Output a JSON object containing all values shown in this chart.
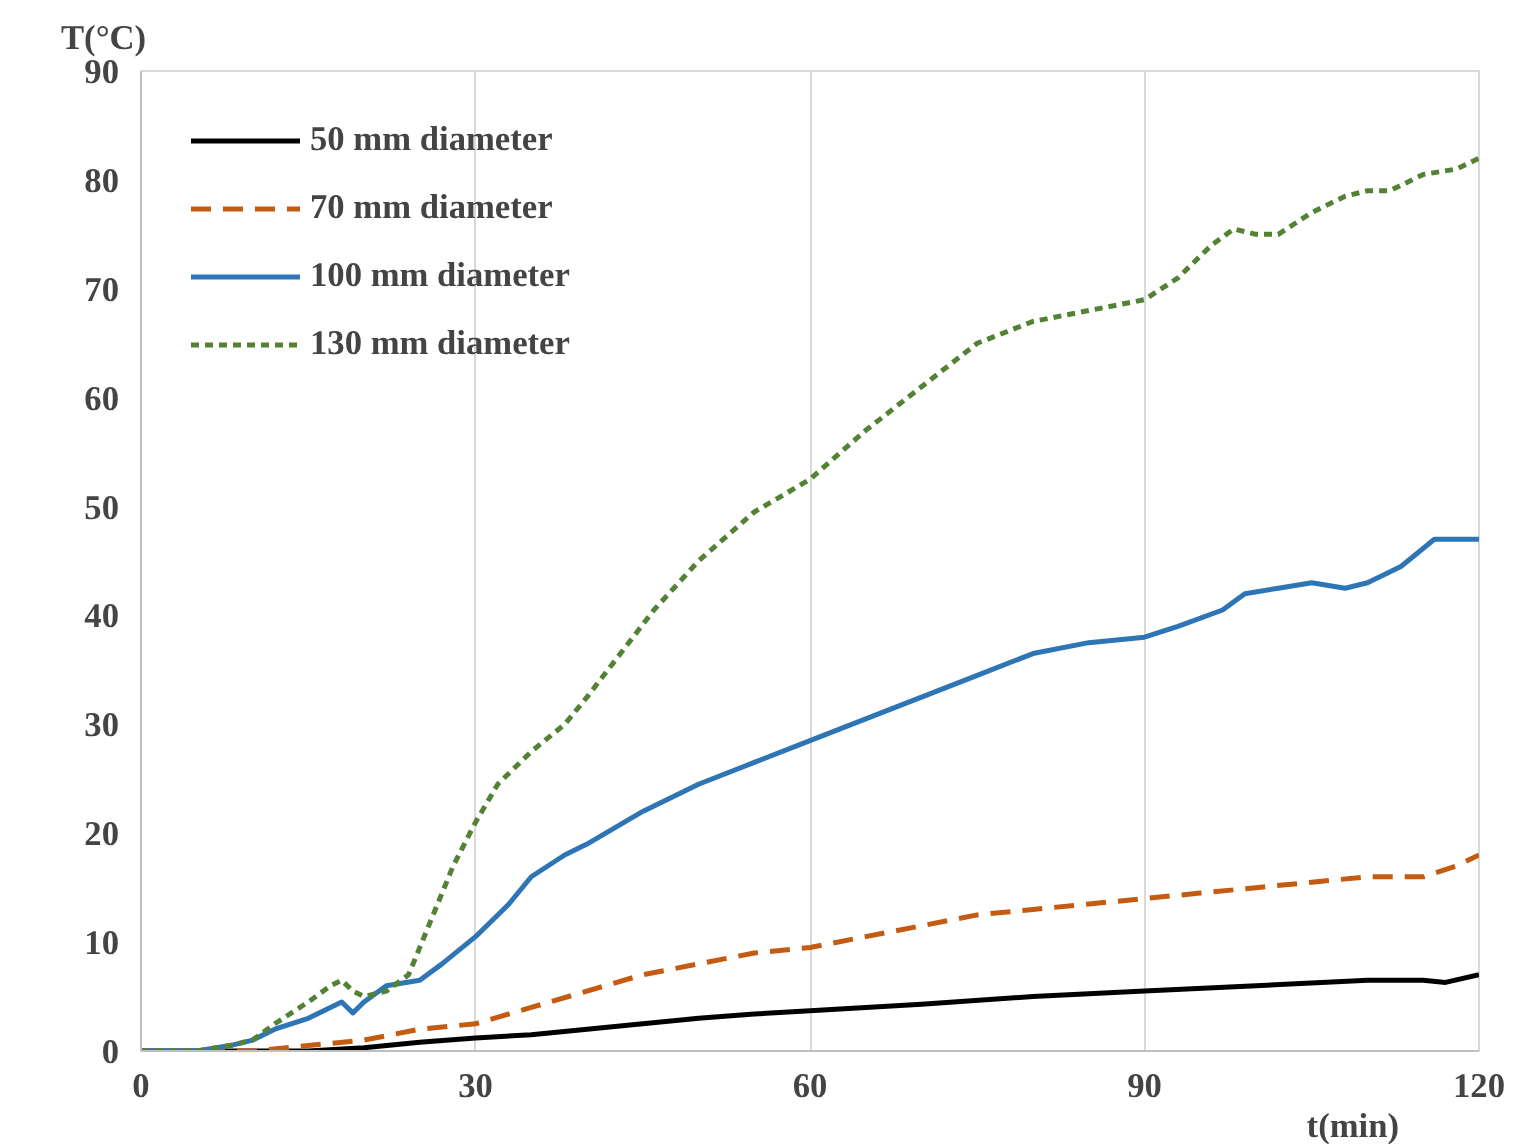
{
  "chart_data": {
    "type": "line",
    "xlabel": "t(min)",
    "ylabel": "T(°C)",
    "xlim": [
      0,
      120
    ],
    "ylim": [
      0,
      90
    ],
    "xticks": [
      0,
      30,
      60,
      90,
      120
    ],
    "yticks": [
      0,
      10,
      20,
      30,
      40,
      50,
      60,
      70,
      80,
      90
    ],
    "grid": "x",
    "legend": "top left",
    "series": [
      {
        "name": "50 mm diameter",
        "color": "#000000",
        "line_style": "solid",
        "x": [
          0,
          15,
          20,
          25,
          30,
          35,
          40,
          45,
          50,
          55,
          60,
          70,
          80,
          90,
          100,
          110,
          115,
          117,
          120
        ],
        "values": [
          0,
          0,
          0.3,
          0.8,
          1.2,
          1.5,
          2,
          2.5,
          3,
          3.4,
          3.7,
          4.3,
          5,
          5.5,
          6,
          6.5,
          6.5,
          6.3,
          7
        ]
      },
      {
        "name": "70 mm diameter",
        "color": "#c55a11",
        "line_style": "dashed",
        "x": [
          0,
          10,
          15,
          20,
          25,
          30,
          35,
          40,
          45,
          50,
          55,
          60,
          65,
          70,
          75,
          80,
          85,
          90,
          95,
          100,
          105,
          110,
          115,
          118,
          120
        ],
        "values": [
          0,
          0,
          0.5,
          1,
          2,
          2.5,
          4,
          5.5,
          7,
          8,
          9,
          9.5,
          10.5,
          11.5,
          12.5,
          13,
          13.5,
          14,
          14.5,
          15,
          15.5,
          16,
          16,
          17,
          18
        ]
      },
      {
        "name": "100 mm diameter",
        "color": "#2e75b6",
        "line_style": "solid",
        "x": [
          0,
          5,
          8,
          10,
          12,
          15,
          18,
          19,
          20,
          22,
          25,
          27,
          30,
          33,
          35,
          38,
          40,
          45,
          50,
          55,
          60,
          65,
          70,
          75,
          80,
          85,
          90,
          93,
          97,
          99,
          102,
          105,
          108,
          110,
          113,
          116,
          118,
          120
        ],
        "values": [
          0,
          0,
          0.5,
          1,
          2,
          3,
          4.5,
          3.5,
          4.5,
          6,
          6.5,
          8,
          10.5,
          13.5,
          16,
          18,
          19,
          22,
          24.5,
          26.5,
          28.5,
          30.5,
          32.5,
          34.5,
          36.5,
          37.5,
          38,
          39,
          40.5,
          42,
          42.5,
          43,
          42.5,
          43,
          44.5,
          47,
          47,
          47
        ]
      },
      {
        "name": "130 mm diameter",
        "color": "#548235",
        "line_style": "dotted",
        "x": [
          0,
          5,
          8,
          10,
          12,
          15,
          17,
          18,
          19,
          20,
          22,
          24,
          26,
          28,
          30,
          32,
          35,
          38,
          40,
          43,
          46,
          50,
          55,
          60,
          65,
          70,
          75,
          80,
          85,
          90,
          93,
          96,
          98,
          100,
          102,
          105,
          108,
          110,
          112,
          115,
          118,
          120
        ],
        "values": [
          0,
          0,
          0.5,
          1,
          2.5,
          4.5,
          6,
          6.5,
          5.5,
          5,
          5.5,
          7,
          12,
          17,
          21,
          24.5,
          27.5,
          30,
          32.5,
          36.5,
          40.5,
          45,
          49.5,
          52.5,
          57,
          61,
          65,
          67,
          68,
          69,
          71,
          74,
          75.5,
          75,
          75,
          77,
          78.5,
          79,
          79,
          80.5,
          81,
          82
        ]
      }
    ]
  }
}
